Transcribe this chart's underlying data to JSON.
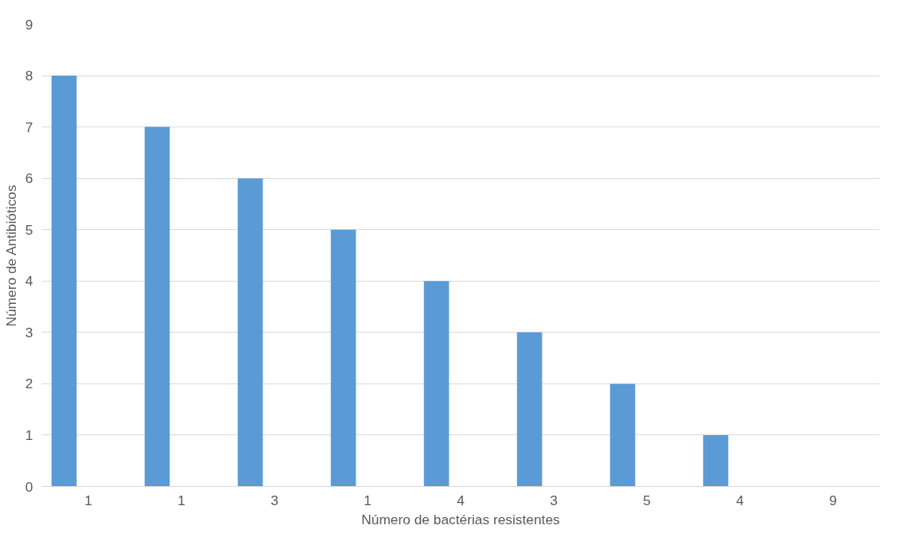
{
  "chart_data": {
    "type": "bar",
    "xlabel": "Número de bactérias resistentes",
    "ylabel": "Número de Antibióticos",
    "categories": [
      "1",
      "1",
      "3",
      "1",
      "4",
      "3",
      "5",
      "4",
      "9"
    ],
    "values": [
      8,
      7,
      6,
      5,
      4,
      3,
      2,
      1,
      0
    ],
    "color": "#5b9bd5",
    "ylim": [
      0,
      9
    ],
    "yticks": [
      0,
      1,
      2,
      3,
      4,
      5,
      6,
      7,
      8,
      9
    ],
    "grid": "y"
  }
}
